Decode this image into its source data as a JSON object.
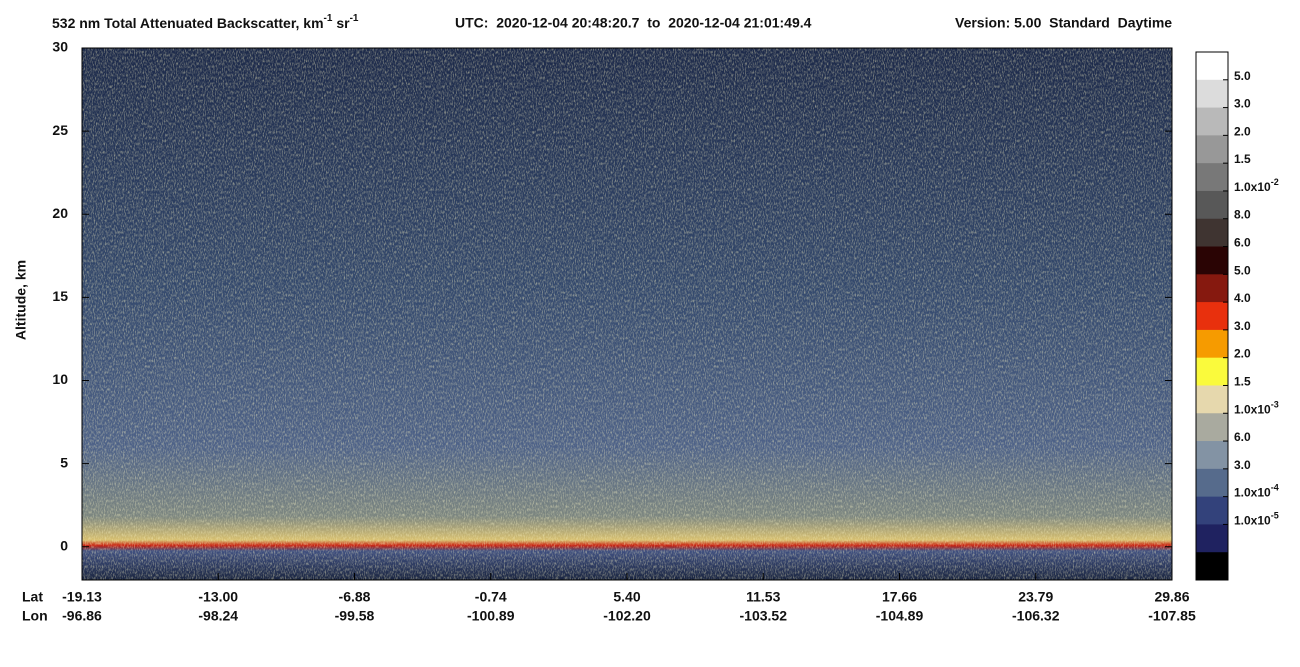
{
  "chart_data": {
    "type": "heatmap",
    "title": [
      {
        "text": "532 nm Total Attenuated Backscatter, km"
      },
      {
        "text": "-1",
        "sup": true
      },
      {
        "text": " sr"
      },
      {
        "text": "-1",
        "sup": true
      }
    ],
    "time_range": "UTC:  2020-12-04 20:48:20.7  to  2020-12-04 21:01:49.4",
    "version": "Version: 5.00  Standard  Daytime",
    "ylabel": "Altitude, km",
    "ylim": [
      -2,
      30
    ],
    "yticks": [
      0,
      5,
      10,
      15,
      20,
      25,
      30
    ],
    "xtick_rows": [
      {
        "name": "Lat",
        "labels": [
          "-19.13",
          "-13.00",
          "-6.88",
          "-0.74",
          "5.40",
          "11.53",
          "17.66",
          "23.79",
          "29.86"
        ]
      },
      {
        "name": "Lon",
        "labels": [
          "-96.86",
          "-98.24",
          "-99.58",
          "-100.89",
          "-102.20",
          "-103.52",
          "-104.89",
          "-106.32",
          "-107.85"
        ]
      }
    ],
    "colorbar_colors": [
      "#ffffff",
      "#dcdcdc",
      "#b9b9b9",
      "#989898",
      "#787878",
      "#585858",
      "#3f3431",
      "#2a0404",
      "#86190f",
      "#e8300d",
      "#f69b00",
      "#fafa3c",
      "#e6d8ad",
      "#a9aa9f",
      "#8393a4",
      "#566b8c",
      "#33427b",
      "#1f2260",
      "#000000"
    ],
    "colorbar_labels": [
      {
        "text": "5.0"
      },
      {
        "text": "3.0"
      },
      {
        "text": "2.0"
      },
      {
        "text": "1.5"
      },
      {
        "text": "1.0x10",
        "exp": "-2"
      },
      {
        "text": "8.0"
      },
      {
        "text": "6.0"
      },
      {
        "text": "5.0"
      },
      {
        "text": "4.0"
      },
      {
        "text": "3.0"
      },
      {
        "text": "2.0"
      },
      {
        "text": "1.5"
      },
      {
        "text": "1.0x10",
        "exp": "-3"
      },
      {
        "text": "6.0"
      },
      {
        "text": "3.0"
      },
      {
        "text": "1.0x10",
        "exp": "-4"
      },
      {
        "text": "1.0x10",
        "exp": "-5"
      }
    ]
  }
}
